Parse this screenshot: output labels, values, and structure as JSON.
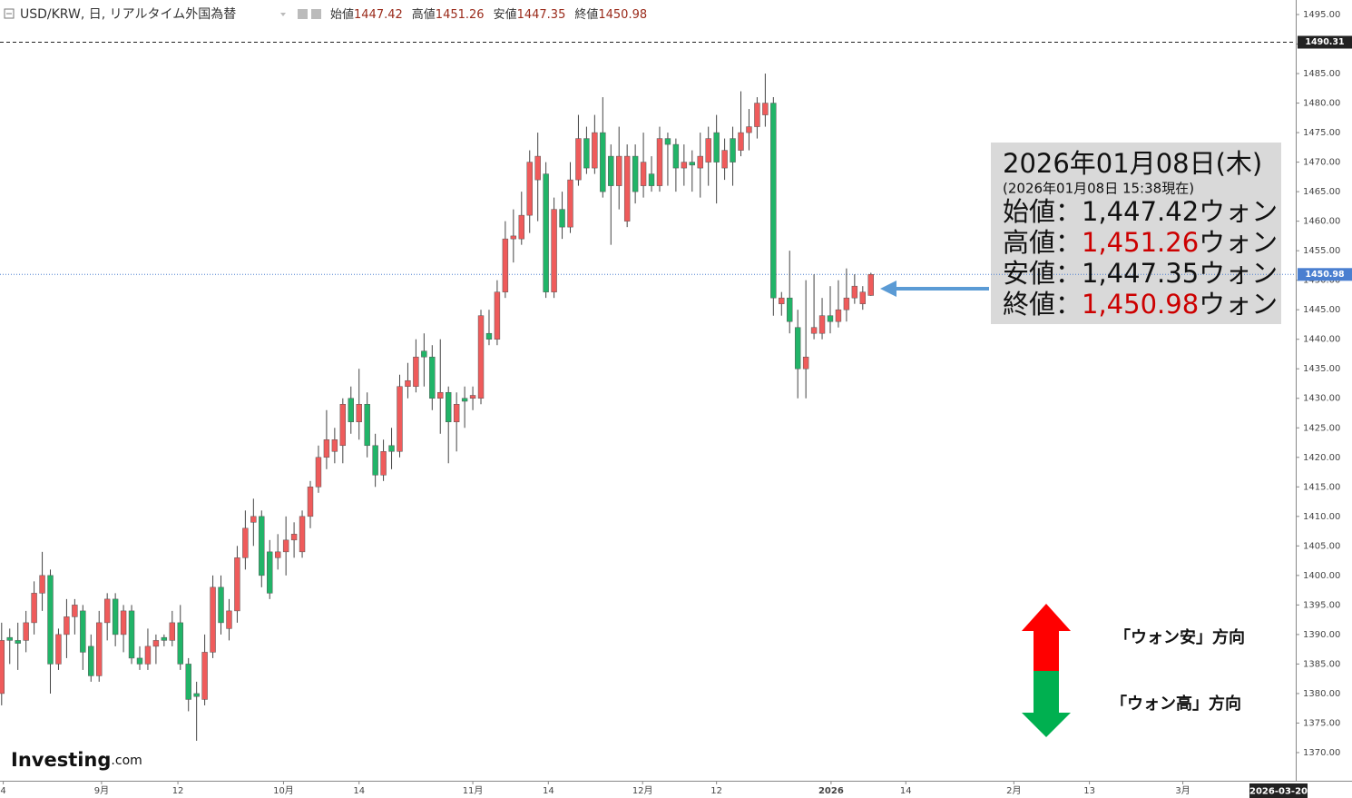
{
  "header": {
    "title": "USD/KRW, 日, リアルタイム外国為替",
    "labels": [
      "始値",
      "高値",
      "安値",
      "終値"
    ]
  },
  "chart_data": {
    "type": "candlestick",
    "up_color": "#ef5b5b",
    "down_color": "#21b468",
    "open": [
      1380,
      1389.5,
      1389,
      1389,
      1392,
      1397,
      1400,
      1385,
      1390,
      1393,
      1394,
      1388,
      1383,
      1392,
      1396,
      1390,
      1394,
      1386,
      1385,
      1388,
      1389.5,
      1389,
      1392,
      1385,
      1380,
      1379,
      1387,
      1398,
      1391,
      1394,
      1403,
      1409,
      1410,
      1404,
      1403,
      1404,
      1406,
      1404,
      1410,
      1415,
      1420,
      1421,
      1422,
      1430,
      1426,
      1429,
      1422,
      1417,
      1422,
      1421,
      1432,
      1432,
      1438,
      1437,
      1430,
      1431,
      1426,
      1430,
      1430,
      1430,
      1441,
      1440,
      1448,
      1457,
      1457,
      1461,
      1467,
      1468,
      1448,
      1462,
      1459,
      1467,
      1474,
      1469,
      1475,
      1471,
      1466,
      1460,
      1471,
      1466,
      1468,
      1466,
      1474,
      1473,
      1469,
      1470,
      1469,
      1470,
      1475,
      1469,
      1474,
      1472,
      1475,
      1476,
      1478,
      1480,
      1446,
      1447,
      1442,
      1435,
      1441,
      1441,
      1444,
      1443,
      1445,
      1447,
      1446,
      1447.42
    ],
    "high": [
      1392,
      1391,
      1392,
      1394,
      1399,
      1404,
      1401,
      1391,
      1396,
      1396,
      1395,
      1390,
      1394,
      1397,
      1397,
      1395,
      1395,
      1388,
      1391,
      1390,
      1390,
      1394,
      1395,
      1386,
      1382,
      1390,
      1400,
      1400,
      1396,
      1405,
      1411,
      1413,
      1411,
      1406,
      1407,
      1410,
      1409,
      1411,
      1416,
      1422,
      1428,
      1425,
      1430,
      1432,
      1435,
      1431,
      1424,
      1423,
      1425,
      1434,
      1436,
      1440,
      1441,
      1439,
      1440,
      1432,
      1431,
      1432,
      1432,
      1445,
      1445,
      1450,
      1460,
      1462,
      1465,
      1472,
      1475,
      1470,
      1464,
      1465,
      1470,
      1478,
      1476,
      1478,
      1481,
      1473,
      1476,
      1473,
      1473,
      1475,
      1471,
      1476,
      1475,
      1474,
      1473,
      1472,
      1475,
      1476,
      1478,
      1474,
      1476,
      1482,
      1479,
      1481,
      1485,
      1481,
      1448,
      1455,
      1445,
      1450,
      1451,
      1447,
      1449,
      1450,
      1452,
      1451,
      1449,
      1451.26
    ],
    "low": [
      1378,
      1385,
      1384,
      1387,
      1390,
      1394,
      1380,
      1384,
      1386,
      1390,
      1384,
      1382,
      1382,
      1389,
      1388,
      1387,
      1385,
      1384,
      1384,
      1385,
      1388,
      1388,
      1384,
      1377,
      1372,
      1378,
      1386,
      1390,
      1389,
      1392,
      1401,
      1405,
      1398,
      1396,
      1401,
      1400,
      1403,
      1403,
      1408,
      1414,
      1418,
      1419,
      1419,
      1424,
      1423,
      1420,
      1415,
      1416,
      1418,
      1420,
      1430,
      1431,
      1432,
      1428,
      1424,
      1419,
      1421,
      1425,
      1428,
      1429,
      1439,
      1439,
      1447,
      1453,
      1456,
      1458,
      1460,
      1447,
      1447,
      1457,
      1458,
      1466,
      1468,
      1468,
      1464,
      1456,
      1462,
      1459,
      1463,
      1464,
      1465,
      1465,
      1466,
      1465,
      1466,
      1465,
      1464,
      1466,
      1463,
      1467,
      1466,
      1471,
      1472,
      1474,
      1476,
      1444,
      1444,
      1441,
      1430,
      1430,
      1440,
      1440,
      1441,
      1442,
      1443,
      1446,
      1445,
      1447.35
    ],
    "close": [
      1389,
      1389,
      1388.5,
      1392,
      1397,
      1400,
      1385,
      1390,
      1393,
      1395,
      1387,
      1383,
      1392,
      1396,
      1390,
      1394,
      1386,
      1385,
      1388,
      1389,
      1389,
      1392,
      1385,
      1379,
      1379.5,
      1387,
      1398,
      1392,
      1394,
      1403,
      1408,
      1410,
      1400,
      1397,
      1404,
      1406,
      1407,
      1410,
      1415,
      1420,
      1423,
      1423,
      1429,
      1426,
      1429,
      1422,
      1417,
      1421,
      1421,
      1432,
      1433,
      1437,
      1437,
      1430,
      1431,
      1426,
      1429,
      1429.5,
      1430.5,
      1444,
      1440,
      1448,
      1457,
      1457.5,
      1461,
      1470,
      1471,
      1448,
      1462,
      1459,
      1467,
      1474,
      1469,
      1475,
      1465,
      1466,
      1471,
      1471,
      1465,
      1470,
      1466,
      1474,
      1473,
      1469,
      1470,
      1469.5,
      1471,
      1474,
      1470,
      1472,
      1470,
      1475,
      1476,
      1480,
      1480,
      1447,
      1447,
      1443,
      1435,
      1437,
      1442,
      1444,
      1443,
      1445,
      1447,
      1449,
      1448,
      1450.98
    ],
    "xlim": [
      -0.2,
      159.3
    ],
    "xticks": [
      {
        "value": 0.2,
        "label": "4"
      },
      {
        "value": 12.3,
        "label": "9月"
      },
      {
        "value": 21.7,
        "label": "12"
      },
      {
        "value": 34.7,
        "label": "10月"
      },
      {
        "value": 44,
        "label": "14"
      },
      {
        "value": 58,
        "label": "11月"
      },
      {
        "value": 67.3,
        "label": "14"
      },
      {
        "value": 78.9,
        "label": "12月"
      },
      {
        "value": 88,
        "label": "12"
      },
      {
        "value": 102.1,
        "label": "2026"
      },
      {
        "value": 111.3,
        "label": "14"
      },
      {
        "value": 124.6,
        "label": "2月"
      },
      {
        "value": 133.9,
        "label": "13"
      },
      {
        "value": 145.4,
        "label": "3月"
      }
    ],
    "x_cursor_label": "2026-03-20",
    "ylim": [
      1365.23,
      1497.46
    ],
    "yticks": [
      {
        "value": 1370,
        "label": "1370.00"
      },
      {
        "value": 1375,
        "label": "1375.00"
      },
      {
        "value": 1380,
        "label": "1380.00"
      },
      {
        "value": 1385,
        "label": "1385.00"
      },
      {
        "value": 1390,
        "label": "1390.00"
      },
      {
        "value": 1395,
        "label": "1395.00"
      },
      {
        "value": 1400,
        "label": "1400.00"
      },
      {
        "value": 1405,
        "label": "1405.00"
      },
      {
        "value": 1410,
        "label": "1410.00"
      },
      {
        "value": 1415,
        "label": "1415.00"
      },
      {
        "value": 1420,
        "label": "1420.00"
      },
      {
        "value": 1425,
        "label": "1425.00"
      },
      {
        "value": 1430,
        "label": "1430.00"
      },
      {
        "value": 1435,
        "label": "1435.00"
      },
      {
        "value": 1440,
        "label": "1440.00"
      },
      {
        "value": 1445,
        "label": "1445.00"
      },
      {
        "value": 1450,
        "label": "1450.00"
      },
      {
        "value": 1455,
        "label": "1455.00"
      },
      {
        "value": 1460,
        "label": "1460.00"
      },
      {
        "value": 1465,
        "label": "1465.00"
      },
      {
        "value": 1470,
        "label": "1470.00"
      },
      {
        "value": 1475,
        "label": "1475.00"
      },
      {
        "value": 1480,
        "label": "1480.00"
      },
      {
        "value": 1485,
        "label": "1485.00"
      },
      {
        "value": 1490,
        "label": "1490.00"
      },
      {
        "value": 1495,
        "label": "1495.00"
      }
    ],
    "price_lines": [
      {
        "value": 1490.31,
        "color": "#222222"
      },
      {
        "value": 1450.98,
        "color": "#4a7fd0"
      }
    ]
  },
  "callout": {
    "date": "2026年01月08日(木)",
    "asof": "(2026年01月08日 15:38現在)",
    "rows": [
      {
        "label": "始値：",
        "value": "1,447.42",
        "unit": "ウォン",
        "color": "#111111"
      },
      {
        "label": "高値：",
        "value": "1,451.26",
        "unit": "ウォン",
        "color": "#cc0000"
      },
      {
        "label": "安値：",
        "value": "1,447.35",
        "unit": "ウォン",
        "color": "#111111"
      },
      {
        "label": "終値：",
        "value": "1,450.98",
        "unit": "ウォン",
        "color": "#cc0000"
      }
    ]
  },
  "legend": {
    "up": "「ウォン安」方向",
    "down": "「ウォン高」方向"
  },
  "logo": {
    "brand": "Investing",
    "suffix": ".com"
  }
}
